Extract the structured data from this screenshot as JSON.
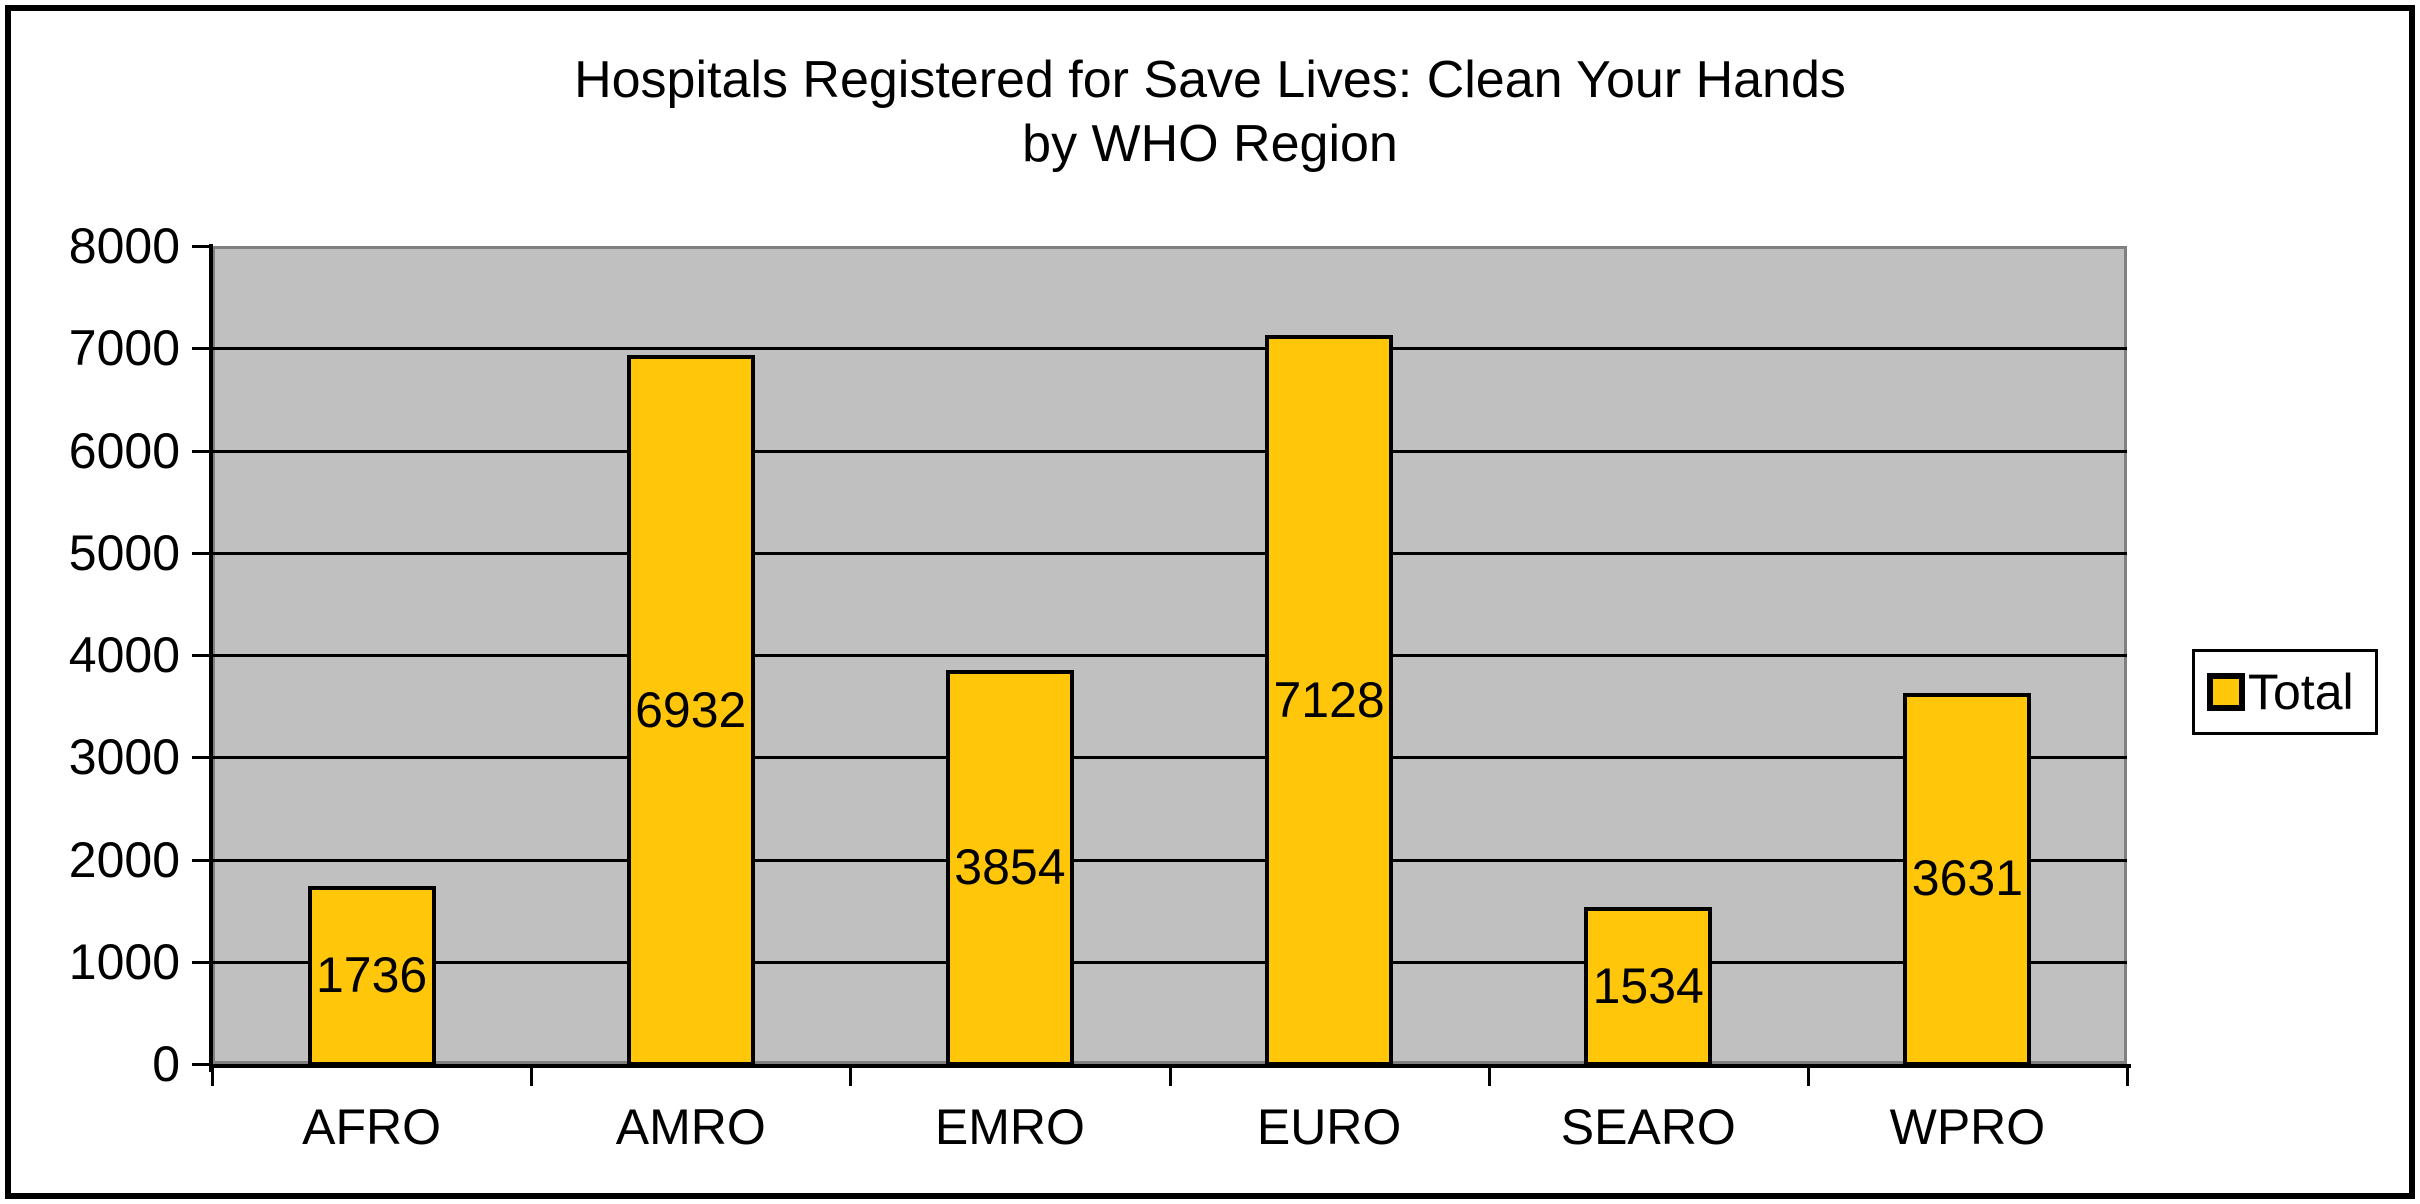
{
  "chart_data": {
    "type": "bar",
    "title": "Hospitals Registered for Save Lives: Clean Your Hands by WHO Region",
    "title_line1": "Hospitals Registered for Save Lives: Clean Your Hands",
    "title_line2": "by WHO Region",
    "categories": [
      "AFRO",
      "AMRO",
      "EMRO",
      "EURO",
      "SEARO",
      "WPRO"
    ],
    "values": [
      1736,
      6932,
      3854,
      7128,
      1534,
      3631
    ],
    "series": [
      {
        "name": "Total",
        "values": [
          1736,
          6932,
          3854,
          7128,
          1534,
          3631
        ]
      }
    ],
    "data_labels_shown": true,
    "xlabel": "",
    "ylabel": "",
    "ylim": [
      0,
      8000
    ],
    "ytick_step": 1000,
    "yticks": [
      0,
      1000,
      2000,
      3000,
      4000,
      5000,
      6000,
      7000,
      8000
    ],
    "grid": true,
    "legend_position": "right",
    "legend_label": "Total"
  },
  "colors": {
    "bar_fill": "#FFC60A",
    "bar_border": "#000000",
    "plot_background": "#C0C0C0",
    "plot_border": "#808080",
    "gridline": "#000000",
    "axis": "#000000",
    "text": "#000000",
    "background": "#FFFFFF",
    "legend_border": "#000000"
  }
}
